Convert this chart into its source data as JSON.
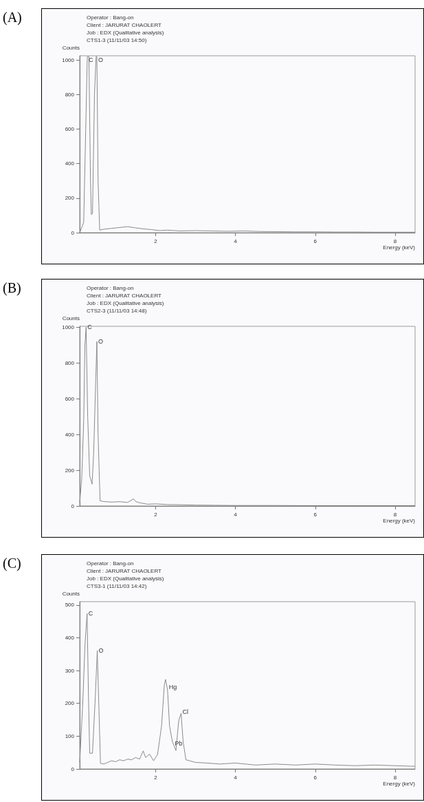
{
  "chart_data": [
    {
      "type": "line",
      "title": "(A)",
      "xlabel": "Energy (keV)",
      "ylabel": "Counts",
      "color": "#8a8a8a",
      "xlim": [
        0.1,
        8.5
      ],
      "ylim": [
        0,
        1025
      ],
      "xticks": [
        2,
        4,
        6,
        8
      ],
      "yticks": [
        0,
        200,
        400,
        600,
        800,
        1000
      ],
      "x": [
        0.1,
        0.2,
        0.25,
        0.29,
        0.33,
        0.37,
        0.39,
        0.42,
        0.47,
        0.51,
        0.53,
        0.56,
        0.6,
        0.7,
        0.9,
        1.1,
        1.3,
        1.5,
        1.7,
        1.9,
        2.1,
        2.3,
        2.6,
        3.0,
        3.4,
        3.8,
        4.2,
        4.6,
        5.0,
        5.5,
        6.0,
        6.5,
        7.0,
        7.5,
        8.0,
        8.5
      ],
      "values": [
        0,
        60,
        600,
        1020,
        1020,
        300,
        105,
        110,
        800,
        1020,
        1020,
        300,
        15,
        20,
        25,
        30,
        35,
        28,
        22,
        18,
        12,
        15,
        10,
        12,
        10,
        8,
        10,
        7,
        6,
        5,
        5,
        4,
        4,
        3,
        3,
        3
      ],
      "annotations": [
        "Operator : Bang-on",
        "Client : JARURAT CHAOLERT",
        "Job : EDX (Qualitative analysis)",
        "CTS1-3 (11/11/03 14:50)",
        {
          "text": "C",
          "x": 0.29,
          "y": 1000
        },
        {
          "text": "O",
          "x": 0.53,
          "y": 1000
        }
      ]
    },
    {
      "type": "line",
      "title": "(B)",
      "xlabel": "Energy (keV)",
      "ylabel": "Counts",
      "color": "#8a8a8a",
      "xlim": [
        0.1,
        8.5
      ],
      "ylim": [
        0,
        1005
      ],
      "xticks": [
        2,
        4,
        6,
        8
      ],
      "yticks": [
        0,
        200,
        400,
        600,
        800,
        1000
      ],
      "x": [
        0.1,
        0.15,
        0.2,
        0.23,
        0.26,
        0.3,
        0.35,
        0.41,
        0.45,
        0.5,
        0.53,
        0.56,
        0.61,
        0.7,
        0.9,
        1.1,
        1.3,
        1.45,
        1.5,
        1.6,
        1.8,
        2.0,
        2.3,
        2.6,
        3.0,
        3.5,
        4.0,
        5.0,
        6.0,
        7.0,
        8.0,
        8.5
      ],
      "values": [
        20,
        150,
        475,
        900,
        1000,
        500,
        170,
        122,
        300,
        700,
        920,
        400,
        29,
        25,
        22,
        24,
        20,
        40,
        25,
        18,
        10,
        12,
        8,
        7,
        5,
        4,
        3,
        3,
        2,
        2,
        2,
        2
      ],
      "annotations": [
        "Operator : Bang-on",
        "Client : JARURAT CHAOLERT",
        "Job : EDX (Qualitative analysis)",
        "CTS2-3 (11/11/03 14:48)",
        {
          "text": "C",
          "x": 0.26,
          "y": 1000
        },
        {
          "text": "O",
          "x": 0.53,
          "y": 920
        }
      ]
    },
    {
      "type": "line",
      "title": "(C)",
      "xlabel": "Energy (keV)",
      "ylabel": "Counts",
      "color": "#8a8a8a",
      "xlim": [
        0.1,
        8.5
      ],
      "ylim": [
        0,
        510
      ],
      "xticks": [
        2,
        4,
        6,
        8
      ],
      "yticks": [
        0,
        100,
        200,
        300,
        400,
        500
      ],
      "x": [
        0.1,
        0.18,
        0.23,
        0.285,
        0.32,
        0.35,
        0.42,
        0.49,
        0.54,
        0.59,
        0.62,
        0.7,
        0.8,
        0.9,
        1.0,
        1.1,
        1.2,
        1.3,
        1.4,
        1.5,
        1.6,
        1.69,
        1.75,
        1.85,
        1.95,
        2.05,
        2.15,
        2.22,
        2.25,
        2.3,
        2.35,
        2.42,
        2.51,
        2.58,
        2.64,
        2.69,
        2.76,
        2.85,
        3.0,
        3.3,
        3.6,
        4.0,
        4.5,
        5.0,
        5.5,
        6.0,
        6.5,
        7.0,
        7.5,
        8.0,
        8.5
      ],
      "values": [
        20,
        210,
        375,
        474,
        218,
        48,
        48,
        218,
        361,
        147,
        17,
        15,
        20,
        25,
        22,
        28,
        25,
        30,
        28,
        35,
        30,
        55,
        35,
        45,
        25,
        44,
        131,
        257,
        273,
        241,
        131,
        84,
        56,
        147,
        170,
        84,
        28,
        25,
        20,
        18,
        15,
        18,
        12,
        15,
        12,
        15,
        12,
        10,
        12,
        10,
        8
      ],
      "annotations": [
        "Operator : Bang-on",
        "Client : JARURAT CHAOLERT",
        "Job : EDX (Qualitative analysis)",
        "CTS3-1 (11/11/03 14:42)",
        {
          "text": "C",
          "x": 0.285,
          "y": 474
        },
        {
          "text": "O",
          "x": 0.54,
          "y": 361
        },
        {
          "text": "Hg",
          "x": 2.3,
          "y": 250
        },
        {
          "text": "Pb",
          "x": 2.45,
          "y": 78
        },
        {
          "text": "Cl",
          "x": 2.64,
          "y": 175
        }
      ]
    }
  ]
}
